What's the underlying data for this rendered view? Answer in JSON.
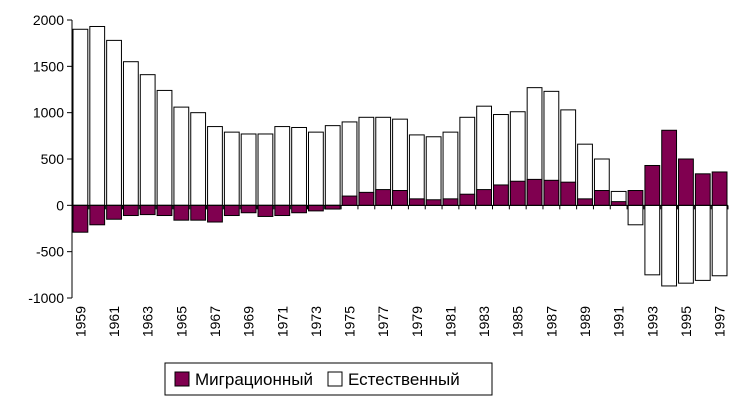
{
  "chart_data": {
    "type": "bar",
    "stacking": "overlaid",
    "title": "",
    "xlabel": "",
    "ylabel": "",
    "ylim": [
      -1000,
      2000
    ],
    "yticks": [
      2000,
      1500,
      1000,
      500,
      0,
      -500,
      -1000
    ],
    "xtick_labels": [
      "1959",
      "1961",
      "1963",
      "1965",
      "1967",
      "1969",
      "1971",
      "1973",
      "1975",
      "1977",
      "1979",
      "1981",
      "1983",
      "1985",
      "1987",
      "1989",
      "1991",
      "1993",
      "1995",
      "1997"
    ],
    "categories": [
      "1959",
      "1960",
      "1961",
      "1962",
      "1963",
      "1964",
      "1965",
      "1966",
      "1967",
      "1968",
      "1969",
      "1970",
      "1971",
      "1972",
      "1973",
      "1974",
      "1975",
      "1976",
      "1977",
      "1978",
      "1979",
      "1980",
      "1981",
      "1982",
      "1983",
      "1984",
      "1985",
      "1986",
      "1987",
      "1988",
      "1989",
      "1990",
      "1991",
      "1992",
      "1993",
      "1994",
      "1995",
      "1996",
      "1997"
    ],
    "legend_position": "bottom",
    "series": [
      {
        "name": "Естественный",
        "color": "#ffffff",
        "values": [
          1900,
          1930,
          1780,
          1550,
          1410,
          1240,
          1060,
          1000,
          850,
          790,
          770,
          770,
          850,
          840,
          790,
          860,
          900,
          950,
          950,
          930,
          760,
          740,
          790,
          950,
          1070,
          980,
          1010,
          1270,
          1230,
          1030,
          660,
          500,
          150,
          -210,
          -750,
          -870,
          -840,
          -810,
          -760
        ]
      },
      {
        "name": "Миграционный",
        "color": "#800050",
        "values": [
          -290,
          -210,
          -150,
          -110,
          -100,
          -110,
          -160,
          -160,
          -180,
          -110,
          -80,
          -120,
          -110,
          -80,
          -60,
          -40,
          100,
          140,
          170,
          160,
          70,
          60,
          70,
          120,
          170,
          220,
          260,
          280,
          270,
          250,
          70,
          160,
          40,
          160,
          430,
          810,
          500,
          340,
          360
        ]
      }
    ]
  }
}
